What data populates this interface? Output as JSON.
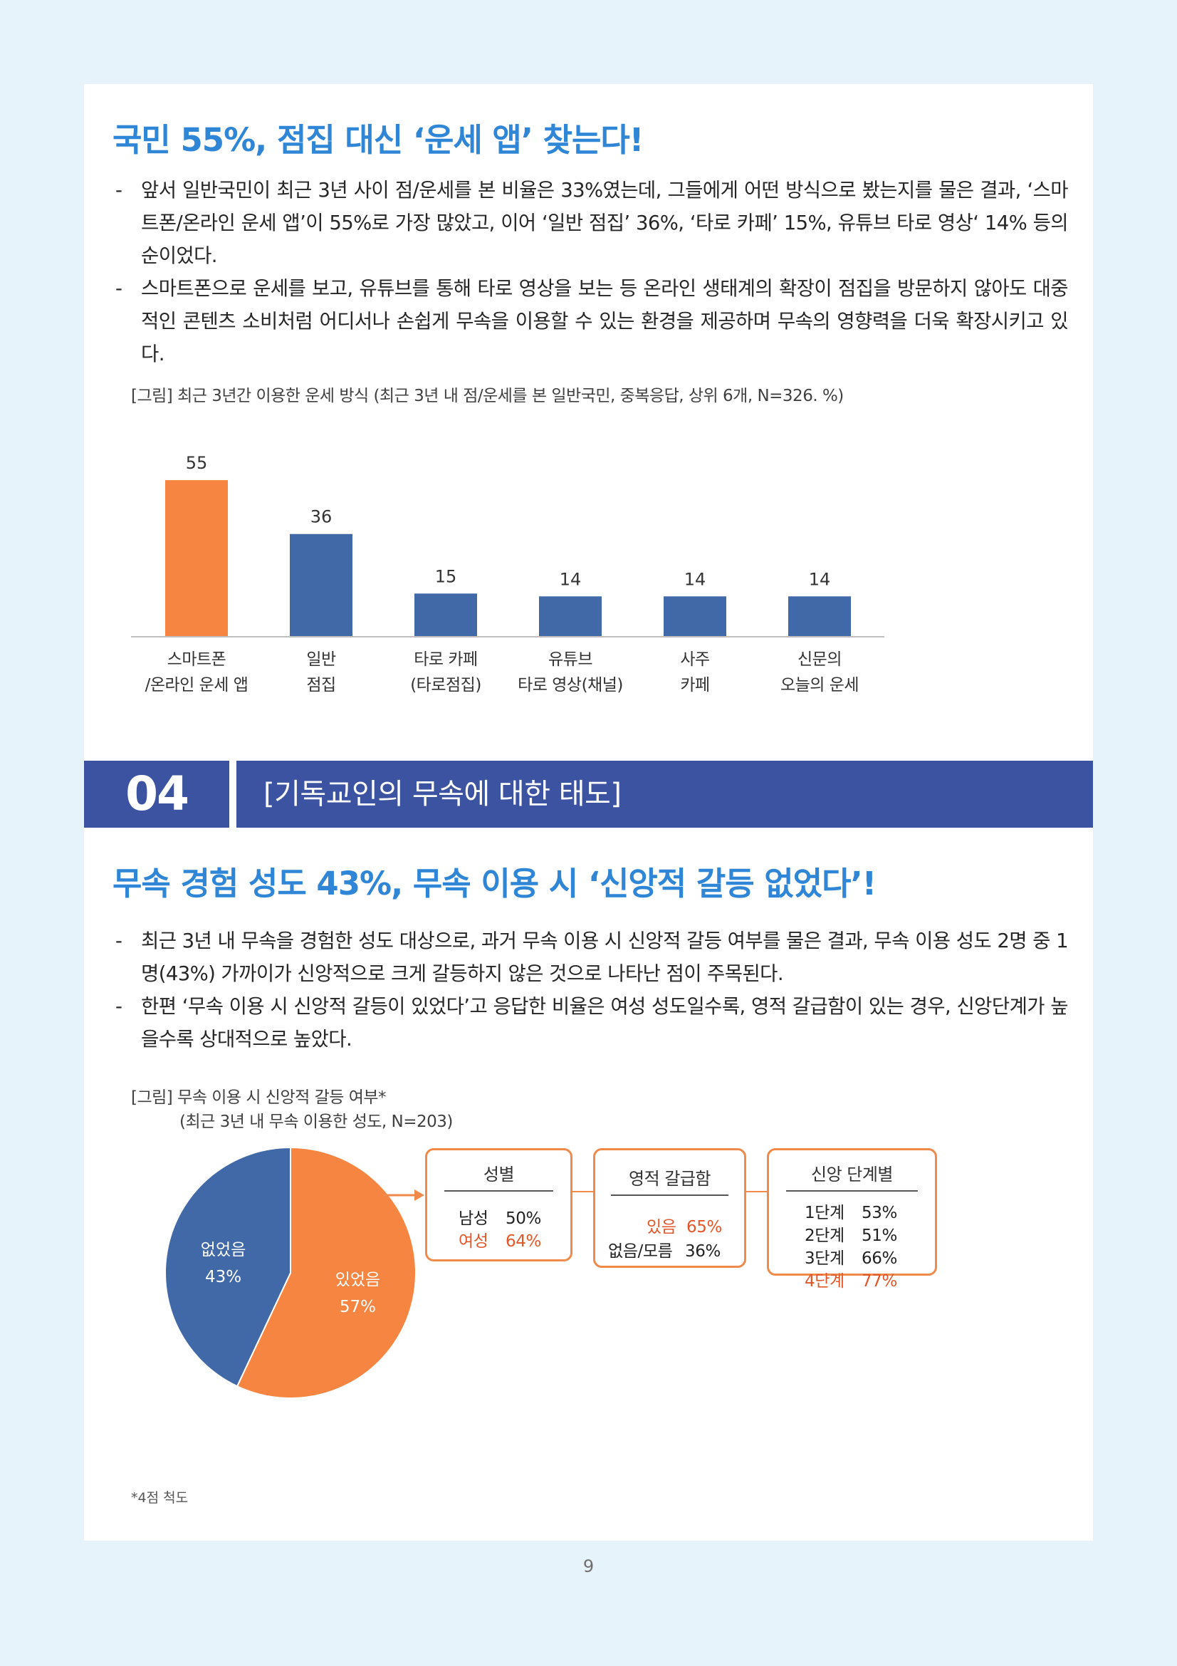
{
  "section1": {
    "headline": "국민 55%, 점집 대신 ‘운세 앱’ 찾는다!",
    "bullets": [
      "앞서 일반국민이 최근 3년 사이 점/운세를 본 비율은 33%였는데, 그들에게 어떤 방식으로 봤는지를 물은 결과, ‘스마트폰/온라인 운세 앱’이 55%로 가장 많았고, 이어 ‘일반 점집’ 36%, ‘타로 카페’ 15%, 유튜브 타로 영상‘ 14% 등의 순이었다.",
      "스마트폰으로 운세를 보고, 유튜브를 통해 타로 영상을 보는 등 온라인 생태계의 확장이 점집을 방문하지 않아도 대중적인 콘텐츠 소비처럼 어디서나 손쉽게 무속을 이용할 수 있는 환경을 제공하며 무속의 영향력을 더욱 확장시키고 있다."
    ],
    "figure_caption": "[그림] 최근 3년간 이용한 운세 방식 (최근 3년 내 점/운세를 본 일반국민, 중복응답, 상위 6개, N=326. %)"
  },
  "chart_data": [
    {
      "type": "bar",
      "categories": [
        [
          "스마트폰",
          "/온라인 운세 앱"
        ],
        [
          "일반",
          "점집"
        ],
        [
          "타로 카페",
          "(타로점집)"
        ],
        [
          "유튜브",
          "타로 영상(채널)"
        ],
        [
          "사주",
          "카페"
        ],
        [
          "신문의",
          "오늘의 운세"
        ]
      ],
      "values": [
        55,
        36,
        15,
        14,
        14,
        14
      ],
      "highlight_index": 0,
      "colors": {
        "highlight": "#f58540",
        "default": "#4169a8"
      },
      "ylim": [
        0,
        60
      ]
    },
    {
      "type": "pie",
      "slices": [
        {
          "label": "있었음",
          "value": 57,
          "display": "57%",
          "color": "#f58540"
        },
        {
          "label": "없었음",
          "value": 43,
          "display": "43%",
          "color": "#4169a8"
        }
      ]
    }
  ],
  "section_header": {
    "number": "04",
    "title": "[기독교인의 무속에 대한 태도]"
  },
  "section2": {
    "headline": "무속 경험 성도 43%, 무속 이용 시 ‘신앙적 갈등 없었다’!",
    "bullets": [
      "최근 3년 내 무속을 경험한 성도 대상으로, 과거 무속 이용 시 신앙적 갈등 여부를 물은 결과, 무속 이용 성도 2명 중 1명(43%) 가까이가 신앙적으로 크게 갈등하지 않은 것으로 나타난 점이 주목된다.",
      "한편 ‘무속 이용 시 신앙적 갈등이 있었다’고 응답한 비율은 여성 성도일수록, 영적 갈급함이 있는 경우, 신앙단계가 높을수록 상대적으로 높았다."
    ],
    "figure_caption_line1": "[그림] 무속 이용 시 신앙적 갈등 여부*",
    "figure_caption_line2": "(최근 3년 내 무속 이용한 성도, N=203)",
    "boxes": [
      {
        "title": "성별",
        "rows": [
          {
            "label": "남성",
            "value": "50%",
            "highlight": false
          },
          {
            "label": "여성",
            "value": "64%",
            "highlight": true
          }
        ]
      },
      {
        "title": "영적 갈급함",
        "rows": [
          {
            "label": "있음",
            "value": "65%",
            "highlight": true
          },
          {
            "label": "없음/모름",
            "value": "36%",
            "highlight": false
          }
        ]
      },
      {
        "title": "신앙 단계별",
        "rows": [
          {
            "label": "1단계",
            "value": "53%",
            "highlight": false
          },
          {
            "label": "2단계",
            "value": "51%",
            "highlight": false
          },
          {
            "label": "3단계",
            "value": "66%",
            "highlight": false
          },
          {
            "label": "4단계",
            "value": "77%",
            "highlight": true
          }
        ]
      }
    ],
    "footnote": "*4점 척도"
  },
  "page_number": "9"
}
